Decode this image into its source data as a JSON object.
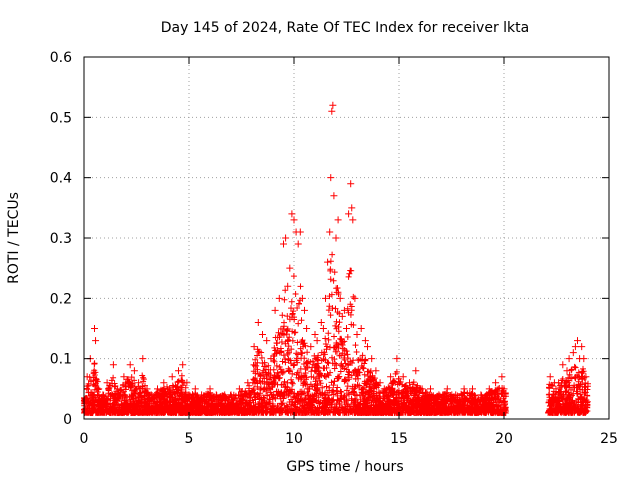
{
  "chart_data": {
    "type": "scatter",
    "title": "Day 145 of 2024, Rate Of TEC Index for receiver lkta",
    "xlabel": "GPS time / hours",
    "ylabel": "ROTI / TECUs",
    "xlim": [
      0,
      25
    ],
    "ylim": [
      0,
      0.6
    ],
    "x_ticks": [
      0,
      5,
      10,
      15,
      20,
      25
    ],
    "x_tick_labels": [
      "0",
      "5",
      "10",
      "15",
      "20",
      "25"
    ],
    "y_ticks": [
      0,
      0.1,
      0.2,
      0.3,
      0.4,
      0.5,
      0.6
    ],
    "y_tick_labels": [
      "0",
      "0.1",
      "0.2",
      "0.3",
      "0.4",
      "0.5",
      "0.6"
    ],
    "grid": true,
    "marker": "+",
    "color": "#ff0000",
    "data_gap_hours": [
      20.1,
      22.1
    ],
    "series": [
      {
        "name": "ROTI",
        "x": [
          0.05,
          0.15,
          0.3,
          0.4,
          0.5,
          0.55,
          0.7,
          0.9,
          1.1,
          1.4,
          1.6,
          1.9,
          2.2,
          2.4,
          2.6,
          2.8,
          3.0,
          3.2,
          3.5,
          3.8,
          4.2,
          4.5,
          4.7,
          4.9,
          5.0,
          5.3,
          5.6,
          6.0,
          6.3,
          6.7,
          7.0,
          7.4,
          7.8,
          8.1,
          8.3,
          8.5,
          8.7,
          8.9,
          9.1,
          9.3,
          9.5,
          9.6,
          9.7,
          9.8,
          9.9,
          10.0,
          10.1,
          10.2,
          10.3,
          10.4,
          10.5,
          10.6,
          10.8,
          11.0,
          11.1,
          11.3,
          11.4,
          11.5,
          11.6,
          11.7,
          11.75,
          11.8,
          11.85,
          11.9,
          12.0,
          12.1,
          12.2,
          12.3,
          12.4,
          12.5,
          12.6,
          12.7,
          12.75,
          12.8,
          12.9,
          13.0,
          13.2,
          13.4,
          13.5,
          13.7,
          13.9,
          14.1,
          14.3,
          14.6,
          14.9,
          15.2,
          15.5,
          15.8,
          16.1,
          16.5,
          16.9,
          17.3,
          17.7,
          18.1,
          18.5,
          18.9,
          19.3,
          19.6,
          19.9,
          20.0,
          22.2,
          22.4,
          22.6,
          22.8,
          23.0,
          23.1,
          23.3,
          23.4,
          23.5,
          23.6,
          23.7,
          23.8,
          23.9
        ],
        "values": [
          0.03,
          0.07,
          0.1,
          0.04,
          0.15,
          0.13,
          0.05,
          0.04,
          0.06,
          0.09,
          0.05,
          0.07,
          0.09,
          0.08,
          0.06,
          0.1,
          0.05,
          0.04,
          0.05,
          0.06,
          0.07,
          0.08,
          0.09,
          0.06,
          0.04,
          0.05,
          0.04,
          0.05,
          0.04,
          0.04,
          0.04,
          0.05,
          0.06,
          0.12,
          0.16,
          0.14,
          0.13,
          0.1,
          0.18,
          0.2,
          0.29,
          0.3,
          0.22,
          0.25,
          0.34,
          0.33,
          0.31,
          0.29,
          0.31,
          0.2,
          0.18,
          0.15,
          0.12,
          0.14,
          0.13,
          0.16,
          0.15,
          0.2,
          0.26,
          0.31,
          0.4,
          0.51,
          0.52,
          0.37,
          0.3,
          0.33,
          0.2,
          0.17,
          0.18,
          0.15,
          0.34,
          0.39,
          0.35,
          0.33,
          0.2,
          0.14,
          0.15,
          0.13,
          0.12,
          0.1,
          0.08,
          0.06,
          0.05,
          0.07,
          0.1,
          0.07,
          0.06,
          0.08,
          0.05,
          0.05,
          0.04,
          0.05,
          0.04,
          0.05,
          0.05,
          0.04,
          0.05,
          0.06,
          0.07,
          0.05,
          0.07,
          0.06,
          0.06,
          0.09,
          0.08,
          0.1,
          0.11,
          0.12,
          0.13,
          0.1,
          0.12,
          0.1,
          0.07
        ]
      }
    ]
  }
}
